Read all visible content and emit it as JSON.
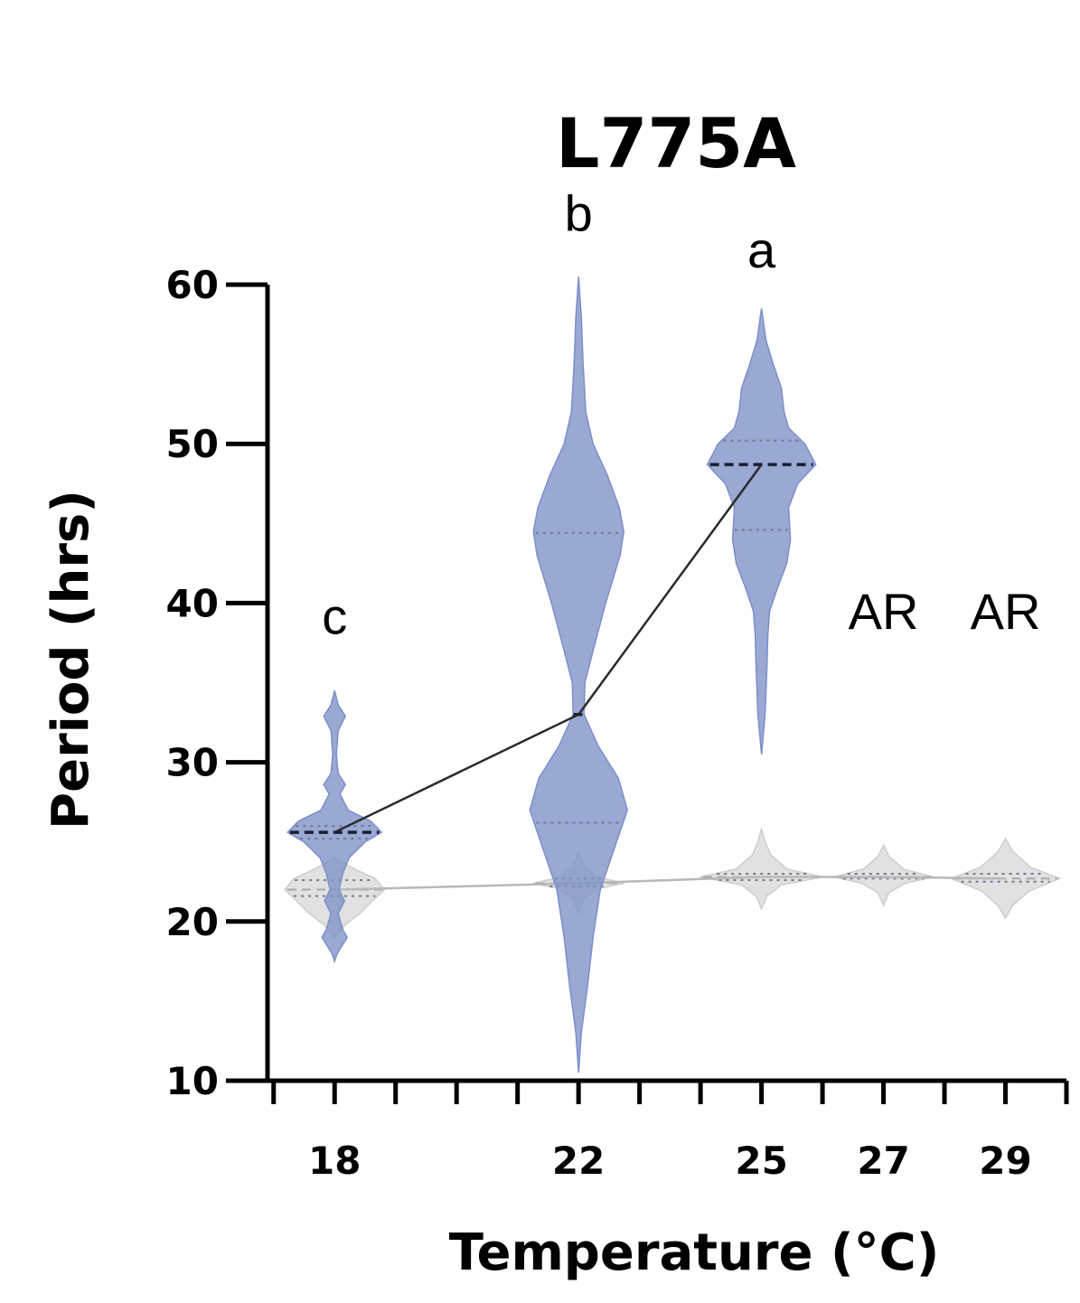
{
  "chart_data": {
    "type": "violin",
    "title": "L775A",
    "xlabel": "Temperature (°C)",
    "ylabel": "Period (hrs)",
    "ylim": [
      10,
      60
    ],
    "yticks": [
      10,
      20,
      30,
      40,
      50,
      60
    ],
    "x_ticks": [
      {
        "value": 18,
        "label": "18"
      },
      {
        "value": 22,
        "label": "22"
      },
      {
        "value": 25,
        "label": "25"
      },
      {
        "value": 27,
        "label": "27"
      },
      {
        "value": 29,
        "label": "29"
      }
    ],
    "x_minor_ticks": [
      17,
      18,
      19,
      20,
      21,
      22,
      23,
      24,
      25,
      26,
      27,
      28,
      29,
      30
    ],
    "xlim": [
      16.9,
      30.0
    ],
    "series": [
      {
        "color": "#7d8fc8",
        "median_line": true,
        "violins": [
          {
            "x": 18,
            "median": 25.6,
            "q1": 25.2,
            "q3": 26.0,
            "min": 17.5,
            "max": 34.5,
            "profile": [
              [
                17.5,
                0
              ],
              [
                18,
                3
              ],
              [
                19,
                14
              ],
              [
                19.5,
                9
              ],
              [
                20.5,
                4
              ],
              [
                21.3,
                11
              ],
              [
                22,
                5
              ],
              [
                23,
                9
              ],
              [
                24,
                16
              ],
              [
                25.0,
                34
              ],
              [
                25.6,
                52
              ],
              [
                26.3,
                40
              ],
              [
                27,
                15
              ],
              [
                28,
                6
              ],
              [
                28.6,
                12
              ],
              [
                29.3,
                4
              ],
              [
                30.5,
                2
              ],
              [
                32,
                4
              ],
              [
                32.9,
                12
              ],
              [
                33.6,
                4
              ],
              [
                34.5,
                0
              ]
            ]
          },
          {
            "x": 22,
            "median": 33.0,
            "q1": 26.2,
            "q3": 44.4,
            "min": 10.5,
            "max": 60.5,
            "profile": [
              [
                10.5,
                0
              ],
              [
                13,
                3
              ],
              [
                16,
                10
              ],
              [
                19,
                16
              ],
              [
                22,
                24
              ],
              [
                25,
                42
              ],
              [
                27,
                54
              ],
              [
                29,
                44
              ],
              [
                31,
                22
              ],
              [
                33,
                6
              ],
              [
                35,
                7
              ],
              [
                37,
                16
              ],
              [
                40,
                30
              ],
              [
                43,
                46
              ],
              [
                44.5,
                50
              ],
              [
                46,
                45
              ],
              [
                48,
                32
              ],
              [
                50,
                16
              ],
              [
                52,
                8
              ],
              [
                55,
                5
              ],
              [
                58,
                3
              ],
              [
                60.5,
                0
              ]
            ]
          },
          {
            "x": 25,
            "median": 48.7,
            "q1": 44.6,
            "q3": 50.2,
            "min": 30.5,
            "max": 58.5,
            "profile": [
              [
                30.5,
                0
              ],
              [
                33,
                4
              ],
              [
                36,
                6
              ],
              [
                38,
                7
              ],
              [
                39.5,
                9
              ],
              [
                41,
                18
              ],
              [
                42.5,
                28
              ],
              [
                44,
                32
              ],
              [
                46,
                30
              ],
              [
                47.5,
                40
              ],
              [
                48.7,
                60
              ],
              [
                50,
                48
              ],
              [
                51,
                30
              ],
              [
                52,
                25
              ],
              [
                53.5,
                22
              ],
              [
                55,
                13
              ],
              [
                56.5,
                5
              ],
              [
                58.5,
                0
              ]
            ]
          }
        ]
      },
      {
        "color": "#cdcdcd",
        "median_line": true,
        "violins": [
          {
            "x": 18,
            "median": 22.0,
            "q1": 21.6,
            "q3": 22.6,
            "min": 19.0,
            "max": 24.0,
            "profile": [
              [
                19.0,
                0
              ],
              [
                19.8,
                12
              ],
              [
                20.6,
                30
              ],
              [
                21.3,
                42
              ],
              [
                22.0,
                55
              ],
              [
                22.7,
                45
              ],
              [
                23.3,
                22
              ],
              [
                24.0,
                0
              ]
            ]
          },
          {
            "x": 22,
            "median": 22.4,
            "q1": 22.2,
            "q3": 22.7,
            "min": 20.5,
            "max": 24.3,
            "profile": [
              [
                20.5,
                0
              ],
              [
                21.5,
                6
              ],
              [
                22.1,
                25
              ],
              [
                22.4,
                50
              ],
              [
                22.8,
                20
              ],
              [
                23.5,
                6
              ],
              [
                24.3,
                0
              ]
            ]
          },
          {
            "x": 25,
            "median": 22.8,
            "q1": 22.6,
            "q3": 23.0,
            "min": 20.8,
            "max": 25.8,
            "profile": [
              [
                20.8,
                0
              ],
              [
                21.6,
                6
              ],
              [
                22.3,
                22
              ],
              [
                22.8,
                68
              ],
              [
                23.3,
                28
              ],
              [
                24.2,
                10
              ],
              [
                25.0,
                4
              ],
              [
                25.8,
                0
              ]
            ]
          },
          {
            "x": 27,
            "median": 22.8,
            "q1": 22.7,
            "q3": 23.0,
            "min": 21.0,
            "max": 24.8,
            "profile": [
              [
                21.0,
                0
              ],
              [
                21.8,
                6
              ],
              [
                22.4,
                24
              ],
              [
                22.8,
                55
              ],
              [
                23.3,
                22
              ],
              [
                24.1,
                6
              ],
              [
                24.8,
                0
              ]
            ]
          },
          {
            "x": 29,
            "median": 22.7,
            "q1": 22.5,
            "q3": 23.0,
            "min": 20.2,
            "max": 25.2,
            "profile": [
              [
                20.2,
                0
              ],
              [
                21.0,
                8
              ],
              [
                21.9,
                26
              ],
              [
                22.7,
                60
              ],
              [
                23.4,
                28
              ],
              [
                24.4,
                8
              ],
              [
                25.2,
                0
              ]
            ]
          }
        ]
      }
    ],
    "annotations": [
      {
        "text": "c",
        "x": 18,
        "y": 39.2
      },
      {
        "text": "b",
        "x": 22,
        "y": 64.5
      },
      {
        "text": "a",
        "x": 25,
        "y": 62.2
      },
      {
        "text": "AR",
        "x": 27,
        "y": 39.5
      },
      {
        "text": "AR",
        "x": 29,
        "y": 39.5
      }
    ]
  }
}
